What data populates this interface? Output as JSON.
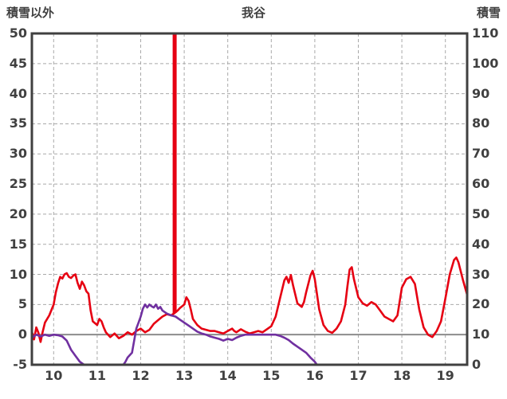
{
  "header": {
    "left_axis_title": "積雪以外",
    "chart_title": "我谷",
    "right_axis_title": "積雪"
  },
  "chart_data": {
    "type": "line",
    "title": "我谷",
    "grid": {
      "color": "#a9a9a9",
      "dashed": true
    },
    "border_color": "#404040",
    "zero_line": {
      "axis": "left",
      "value": 0,
      "color": "#8c8c8c"
    },
    "x_axis": {
      "min": 9.5,
      "max": 19.5,
      "ticks": [
        10,
        11,
        12,
        13,
        14,
        15,
        16,
        17,
        18,
        19
      ]
    },
    "left_axis": {
      "label": "積雪以外",
      "min": -5,
      "max": 50,
      "tick_step": 5,
      "ticks": [
        -5,
        0,
        5,
        10,
        15,
        20,
        25,
        30,
        35,
        40,
        45,
        50
      ]
    },
    "right_axis": {
      "label": "積雪",
      "min": 0,
      "max": 110,
      "tick_step": 10,
      "ticks": [
        0,
        10,
        20,
        30,
        40,
        50,
        60,
        70,
        80,
        90,
        100,
        110
      ]
    },
    "annotations": [
      {
        "type": "vertical-spike",
        "axis": "left",
        "x": 12.78,
        "from": 3.6,
        "to": 50,
        "color": "#e60012",
        "width": 5,
        "note": "off-scale red spike reaching top of plot"
      }
    ],
    "series": [
      {
        "name": "積雪以外",
        "axis": "left",
        "color": "#e60012",
        "points": [
          [
            9.5,
            0.5
          ],
          [
            9.55,
            -0.8
          ],
          [
            9.6,
            1.2
          ],
          [
            9.65,
            0.3
          ],
          [
            9.7,
            -1.2
          ],
          [
            9.75,
            0.5
          ],
          [
            9.8,
            2
          ],
          [
            9.9,
            3.2
          ],
          [
            10.0,
            5
          ],
          [
            10.05,
            7
          ],
          [
            10.1,
            8.5
          ],
          [
            10.15,
            9.6
          ],
          [
            10.2,
            9.3
          ],
          [
            10.25,
            10
          ],
          [
            10.3,
            10.2
          ],
          [
            10.35,
            9.6
          ],
          [
            10.4,
            9.4
          ],
          [
            10.45,
            9.8
          ],
          [
            10.5,
            10
          ],
          [
            10.55,
            8.6
          ],
          [
            10.6,
            7.6
          ],
          [
            10.65,
            8.8
          ],
          [
            10.7,
            8.2
          ],
          [
            10.75,
            7.2
          ],
          [
            10.8,
            6.8
          ],
          [
            10.85,
            4
          ],
          [
            10.9,
            2.2
          ],
          [
            11.0,
            1.6
          ],
          [
            11.05,
            2.6
          ],
          [
            11.1,
            2.2
          ],
          [
            11.15,
            1.2
          ],
          [
            11.2,
            0.4
          ],
          [
            11.3,
            -0.4
          ],
          [
            11.4,
            0.2
          ],
          [
            11.5,
            -0.6
          ],
          [
            11.6,
            -0.2
          ],
          [
            11.7,
            0.4
          ],
          [
            11.8,
            0
          ],
          [
            11.9,
            0.6
          ],
          [
            12.0,
            1
          ],
          [
            12.1,
            0.4
          ],
          [
            12.2,
            0.8
          ],
          [
            12.3,
            1.8
          ],
          [
            12.4,
            2.4
          ],
          [
            12.5,
            3
          ],
          [
            12.6,
            3.4
          ],
          [
            12.7,
            3.2
          ],
          [
            12.78,
            3.6
          ],
          [
            12.85,
            4
          ],
          [
            12.9,
            4.4
          ],
          [
            13.0,
            5
          ],
          [
            13.05,
            6.2
          ],
          [
            13.1,
            5.6
          ],
          [
            13.15,
            4.2
          ],
          [
            13.2,
            2.6
          ],
          [
            13.3,
            1.6
          ],
          [
            13.4,
            1
          ],
          [
            13.5,
            0.8
          ],
          [
            13.6,
            0.6
          ],
          [
            13.7,
            0.6
          ],
          [
            13.8,
            0.4
          ],
          [
            13.9,
            0.2
          ],
          [
            14.0,
            0.6
          ],
          [
            14.1,
            1
          ],
          [
            14.15,
            0.6
          ],
          [
            14.2,
            0.4
          ],
          [
            14.3,
            0.9
          ],
          [
            14.4,
            0.5
          ],
          [
            14.5,
            0.2
          ],
          [
            14.6,
            0.4
          ],
          [
            14.7,
            0.6
          ],
          [
            14.8,
            0.4
          ],
          [
            14.9,
            0.9
          ],
          [
            15.0,
            1.4
          ],
          [
            15.1,
            3
          ],
          [
            15.2,
            6
          ],
          [
            15.3,
            9
          ],
          [
            15.35,
            9.6
          ],
          [
            15.4,
            8.6
          ],
          [
            15.45,
            9.9
          ],
          [
            15.5,
            8.2
          ],
          [
            15.6,
            5.2
          ],
          [
            15.7,
            4.6
          ],
          [
            15.75,
            5.4
          ],
          [
            15.8,
            7
          ],
          [
            15.9,
            9.8
          ],
          [
            15.95,
            10.6
          ],
          [
            16.0,
            9.2
          ],
          [
            16.1,
            4.2
          ],
          [
            16.2,
            1.6
          ],
          [
            16.3,
            0.6
          ],
          [
            16.4,
            0.3
          ],
          [
            16.5,
            1
          ],
          [
            16.6,
            2.2
          ],
          [
            16.7,
            5
          ],
          [
            16.75,
            8
          ],
          [
            16.8,
            10.8
          ],
          [
            16.85,
            11.2
          ],
          [
            16.9,
            9.2
          ],
          [
            17.0,
            6.2
          ],
          [
            17.1,
            5.2
          ],
          [
            17.2,
            4.8
          ],
          [
            17.3,
            5.4
          ],
          [
            17.4,
            5
          ],
          [
            17.5,
            4
          ],
          [
            17.6,
            3
          ],
          [
            17.7,
            2.6
          ],
          [
            17.8,
            2.2
          ],
          [
            17.9,
            3.2
          ],
          [
            18.0,
            7.8
          ],
          [
            18.1,
            9.2
          ],
          [
            18.2,
            9.6
          ],
          [
            18.3,
            8.4
          ],
          [
            18.4,
            4.2
          ],
          [
            18.5,
            1.2
          ],
          [
            18.6,
            0
          ],
          [
            18.7,
            -0.4
          ],
          [
            18.8,
            0.6
          ],
          [
            18.9,
            2.2
          ],
          [
            19.0,
            6
          ],
          [
            19.1,
            10
          ],
          [
            19.2,
            12.4
          ],
          [
            19.25,
            12.8
          ],
          [
            19.3,
            12
          ],
          [
            19.4,
            9.2
          ],
          [
            19.5,
            6.6
          ]
        ]
      },
      {
        "name": "積雪",
        "axis": "right",
        "color": "#7030a0",
        "points": [
          [
            9.5,
            9
          ],
          [
            9.6,
            10
          ],
          [
            9.7,
            9.4
          ],
          [
            9.8,
            10
          ],
          [
            9.9,
            9.6
          ],
          [
            10.0,
            10
          ],
          [
            10.1,
            9.8
          ],
          [
            10.2,
            9.4
          ],
          [
            10.3,
            8
          ],
          [
            10.4,
            5
          ],
          [
            10.5,
            3
          ],
          [
            10.6,
            1
          ],
          [
            10.7,
            0
          ],
          [
            11.0,
            0
          ],
          [
            11.3,
            0
          ],
          [
            11.6,
            0
          ],
          [
            11.65,
            1
          ],
          [
            11.7,
            2.4
          ],
          [
            11.8,
            4
          ],
          [
            11.85,
            8
          ],
          [
            11.9,
            12
          ],
          [
            11.95,
            14
          ],
          [
            12.0,
            16
          ],
          [
            12.05,
            18.6
          ],
          [
            12.1,
            20
          ],
          [
            12.15,
            19
          ],
          [
            12.2,
            20
          ],
          [
            12.25,
            19.4
          ],
          [
            12.3,
            19
          ],
          [
            12.35,
            20
          ],
          [
            12.4,
            18.6
          ],
          [
            12.45,
            19.2
          ],
          [
            12.5,
            18
          ],
          [
            12.6,
            17
          ],
          [
            12.7,
            16.4
          ],
          [
            12.8,
            16
          ],
          [
            12.9,
            15
          ],
          [
            13.0,
            14
          ],
          [
            13.1,
            13
          ],
          [
            13.2,
            12
          ],
          [
            13.3,
            11
          ],
          [
            13.4,
            10.4
          ],
          [
            13.5,
            10
          ],
          [
            13.6,
            9.4
          ],
          [
            13.7,
            9
          ],
          [
            13.8,
            8.6
          ],
          [
            13.9,
            8
          ],
          [
            14.0,
            8.6
          ],
          [
            14.1,
            8.2
          ],
          [
            14.2,
            9
          ],
          [
            14.3,
            9.6
          ],
          [
            14.4,
            10
          ],
          [
            14.6,
            10
          ],
          [
            14.8,
            10
          ],
          [
            15.0,
            10
          ],
          [
            15.1,
            10
          ],
          [
            15.2,
            9.6
          ],
          [
            15.3,
            9
          ],
          [
            15.4,
            8.2
          ],
          [
            15.5,
            7
          ],
          [
            15.6,
            6
          ],
          [
            15.7,
            5
          ],
          [
            15.8,
            4
          ],
          [
            15.9,
            2.4
          ],
          [
            16.0,
            1
          ],
          [
            16.05,
            0
          ],
          [
            16.5,
            0
          ],
          [
            17.0,
            0
          ],
          [
            17.5,
            0
          ],
          [
            18.0,
            0
          ],
          [
            18.5,
            0
          ],
          [
            19.0,
            0
          ],
          [
            19.5,
            0
          ]
        ]
      }
    ]
  }
}
